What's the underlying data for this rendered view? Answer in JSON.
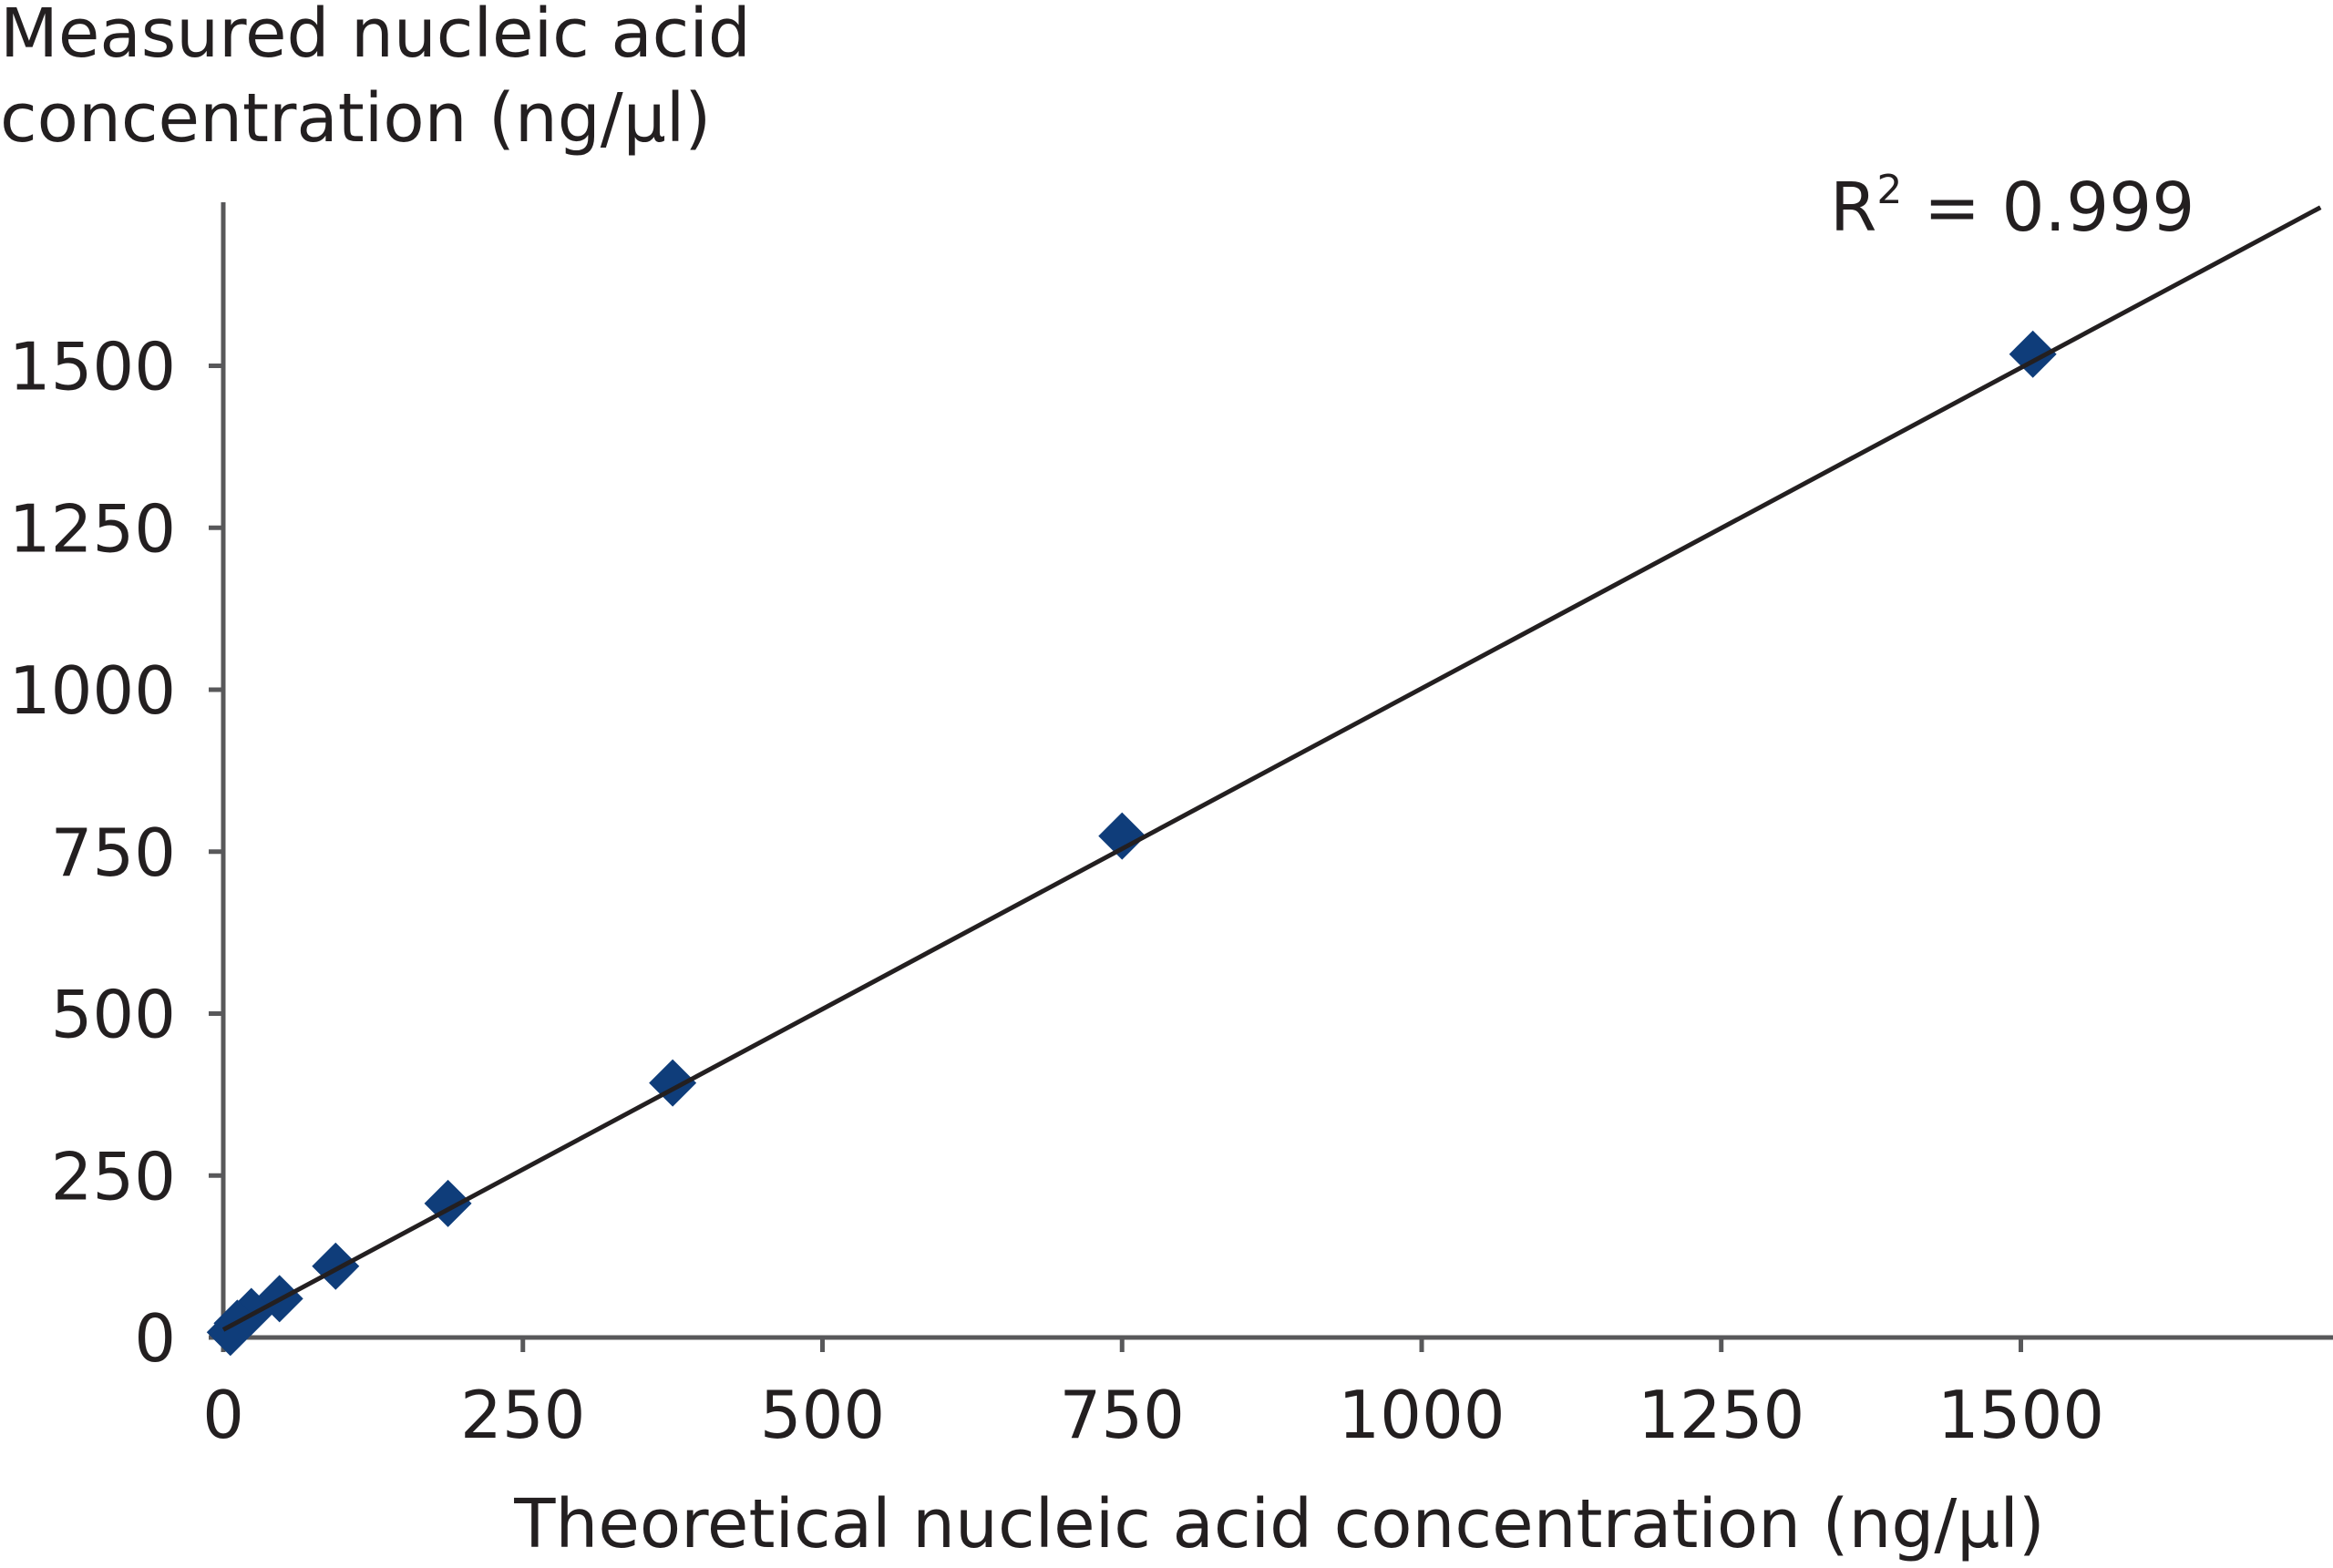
{
  "chart_data": {
    "type": "scatter",
    "title": "",
    "ylabel_lines": [
      "Measured nucleic acid",
      "concentration (ng/µl)"
    ],
    "xlabel": "Theoretical nucleic acid concentration (ng/µl)",
    "annotation": {
      "r2_label": "R",
      "r2_sup": "2",
      "r2_value": " = 0.999"
    },
    "xlim": [
      0,
      1750
    ],
    "ylim": [
      0,
      1750
    ],
    "xticks": [
      0,
      250,
      500,
      750,
      1000,
      1250,
      1500
    ],
    "yticks": [
      0,
      250,
      500,
      750,
      1000,
      1250,
      1500
    ],
    "grid": false,
    "series": [
      {
        "name": "Measured",
        "marker": "diamond",
        "color": "#0f3d7a",
        "x": [
          1510,
          750,
          375,
          187.5,
          93.75,
          46.9,
          23.4,
          11.7,
          5.9
        ],
        "y": [
          1518,
          774,
          393,
          207,
          110,
          60,
          40,
          22,
          8
        ]
      }
    ],
    "fit_line": {
      "slope": 0.99,
      "intercept": 12,
      "x_range": [
        0,
        1750
      ],
      "color": "#231f20"
    }
  }
}
